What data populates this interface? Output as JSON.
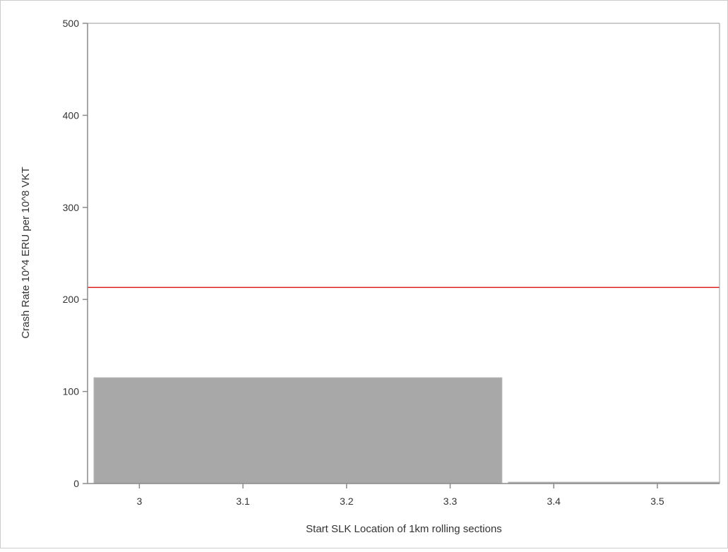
{
  "chart_data": {
    "type": "bar",
    "xlabel": "Start SLK Location of 1km rolling sections",
    "ylabel": "Crash Rate 10^4 ERU per 10^8 VKT",
    "xlim": [
      2.95,
      3.56
    ],
    "ylim": [
      0,
      500
    ],
    "x_ticks": [
      "3",
      "3.1",
      "3.2",
      "3.3",
      "3.4",
      "3.5"
    ],
    "y_ticks": [
      "0",
      "100",
      "200",
      "300",
      "400",
      "500"
    ],
    "grid": false,
    "legend": "none",
    "bars": [
      {
        "x_start": 2.95,
        "x_end": 3.35,
        "value": 115
      },
      {
        "x_start": 3.35,
        "x_end": 3.56,
        "value": 0
      }
    ],
    "reference_line": {
      "value": 213,
      "color": "#dd2222"
    },
    "colors": {
      "bar_fill": "#a8a8a8",
      "bar_edge": "#b8b8b8",
      "axis": "#8a8a8a",
      "frame": "#999999"
    }
  }
}
